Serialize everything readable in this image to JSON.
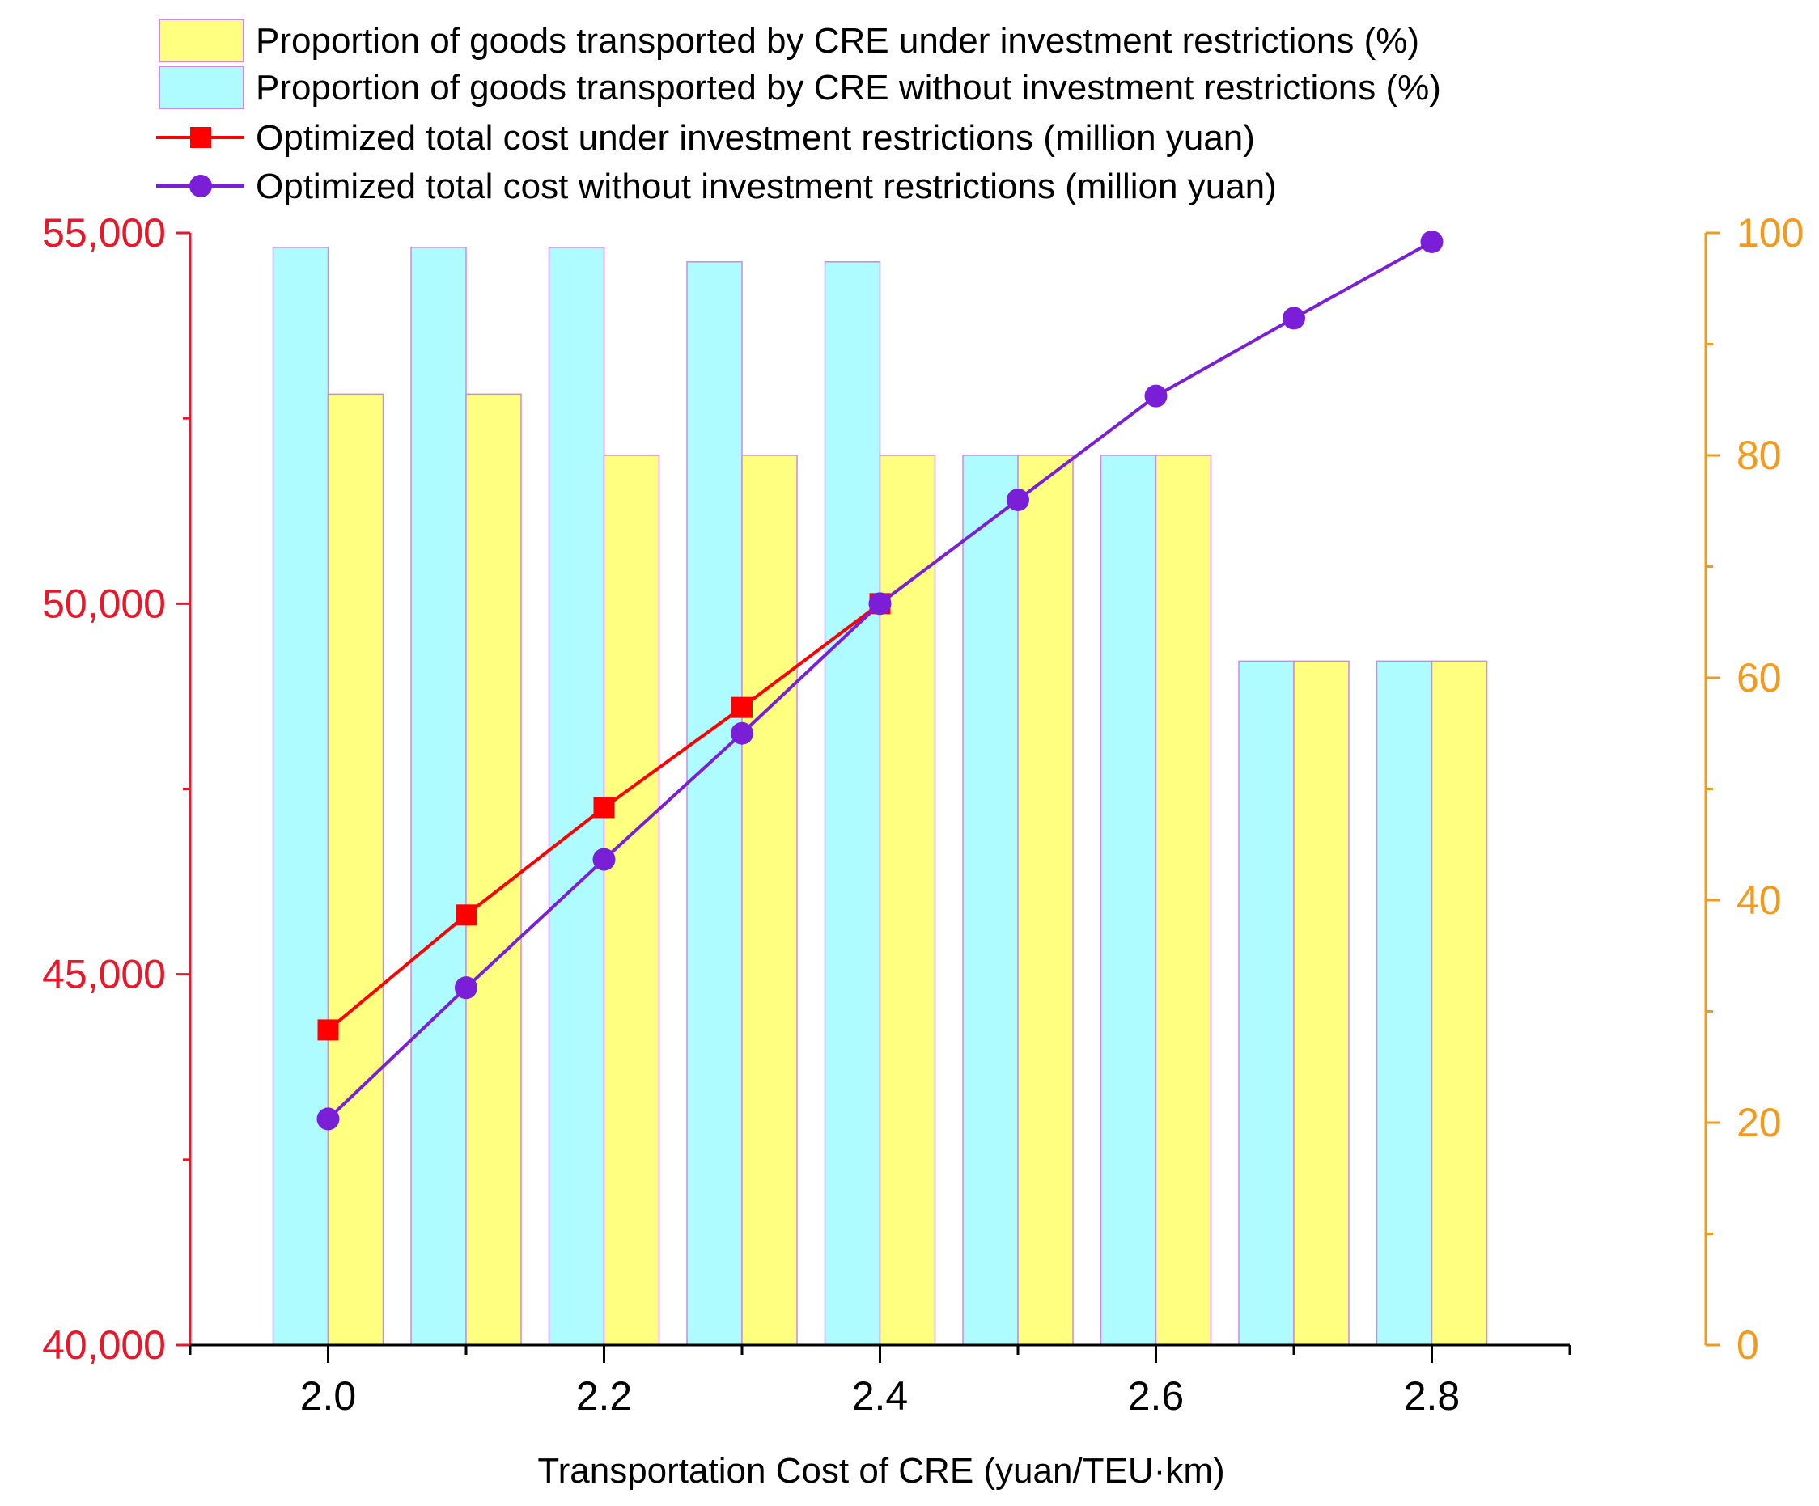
{
  "chart_data": {
    "type": "bar+line",
    "title": "",
    "xlabel": "Transportation Cost of CRE (yuan/TEU·km)",
    "ylabel_left": "",
    "ylabel_right": "",
    "x": [
      2.0,
      2.1,
      2.2,
      2.3,
      2.4,
      2.5,
      2.6,
      2.7,
      2.8
    ],
    "x_tick_labels": [
      "2.0",
      "2.2",
      "2.4",
      "2.6",
      "2.8"
    ],
    "x_tick_values": [
      2.0,
      2.2,
      2.4,
      2.6,
      2.8
    ],
    "xlim": [
      1.9,
      2.9
    ],
    "y_left": {
      "lim": [
        40000,
        55000
      ],
      "tick_values": [
        40000,
        45000,
        50000,
        55000
      ],
      "tick_labels": [
        "40,000",
        "45,000",
        "50,000",
        "55,000"
      ]
    },
    "y_right": {
      "lim": [
        0,
        100
      ],
      "tick_values": [
        0,
        20,
        40,
        60,
        80,
        100
      ],
      "tick_labels": [
        "0",
        "20",
        "40",
        "60",
        "80",
        "100"
      ]
    },
    "legend_position": "top-left",
    "bar_series": [
      {
        "name": "Proportion of goods transported by CRE without investment restrictions (%)",
        "axis": "right",
        "values": [
          98.7,
          98.7,
          98.7,
          97.4,
          97.4,
          80,
          80,
          61.5,
          61.5
        ]
      },
      {
        "name": "Proportion of goods transported by CRE under investment restrictions (%)",
        "axis": "right",
        "values": [
          85.5,
          85.5,
          80,
          80,
          80,
          80,
          80,
          61.5,
          61.5
        ]
      }
    ],
    "line_series": [
      {
        "name": "Optimized total cost under investment restrictions (million yuan)",
        "axis": "left",
        "marker": "square",
        "values": [
          44250,
          45800,
          47250,
          48600,
          50000,
          null,
          null,
          null,
          null
        ]
      },
      {
        "name": "Optimized total cost without investment restrictions (million yuan)",
        "axis": "left",
        "marker": "circle",
        "values": [
          43050,
          44820,
          46550,
          48250,
          50000,
          51400,
          52800,
          53850,
          54880
        ]
      }
    ],
    "legend": [
      "Proportion of goods transported by CRE under investment restrictions (%)",
      "Proportion of goods transported by CRE without investment restrictions (%)",
      "Optimized total cost under investment restrictions (million yuan)",
      "Optimized total cost without investment restrictions (million yuan)"
    ]
  },
  "colors": {
    "bar_without": "#aefcff",
    "bar_without_stroke": "#cc88ee",
    "bar_under": "#ffff80",
    "bar_under_stroke": "#cc88ee",
    "line_under": "#ff0000",
    "line_without": "#7a1ed8",
    "axis_left": "#e8182a",
    "axis_right": "#f39a1c",
    "axis_bottom": "#000000"
  }
}
